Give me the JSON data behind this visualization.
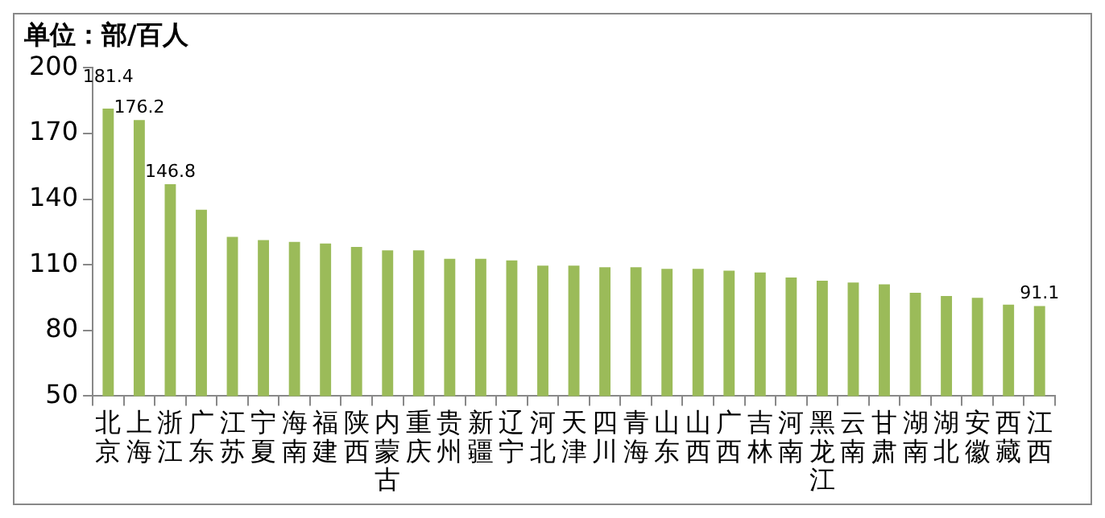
{
  "chart_data": {
    "type": "bar",
    "title": "单位：部/百人",
    "categories": [
      "北京",
      "上海",
      "浙江",
      "广东",
      "江苏",
      "宁夏",
      "海南",
      "福建",
      "陕西",
      "内蒙古",
      "重庆",
      "贵州",
      "新疆",
      "辽宁",
      "河北",
      "天津",
      "四川",
      "青海",
      "山东",
      "山西",
      "广西",
      "吉林",
      "河南",
      "黑龙江",
      "云南",
      "甘肃",
      "湖南",
      "湖北",
      "安徽",
      "西藏",
      "江西"
    ],
    "values": [
      181.4,
      176.2,
      146.8,
      135.2,
      122.8,
      121.3,
      120.5,
      119.7,
      118.2,
      116.6,
      116.6,
      112.7,
      112.7,
      112,
      109.6,
      109.6,
      108.9,
      108.9,
      108.1,
      108.1,
      107.3,
      106.5,
      104.2,
      102.7,
      101.9,
      101.1,
      97.2,
      95.7,
      94.9,
      91.8,
      91.1
    ],
    "value_labels": [
      "181.4",
      "176.2",
      "146.8",
      null,
      null,
      null,
      null,
      null,
      null,
      null,
      null,
      null,
      null,
      null,
      null,
      null,
      null,
      null,
      null,
      null,
      null,
      null,
      null,
      null,
      null,
      null,
      null,
      null,
      null,
      null,
      "91.1"
    ],
    "color": "#9bbb59",
    "ylim": [
      50,
      200
    ],
    "yticks": [
      50,
      80,
      110,
      140,
      170,
      200
    ],
    "grid": false,
    "legend": false
  }
}
